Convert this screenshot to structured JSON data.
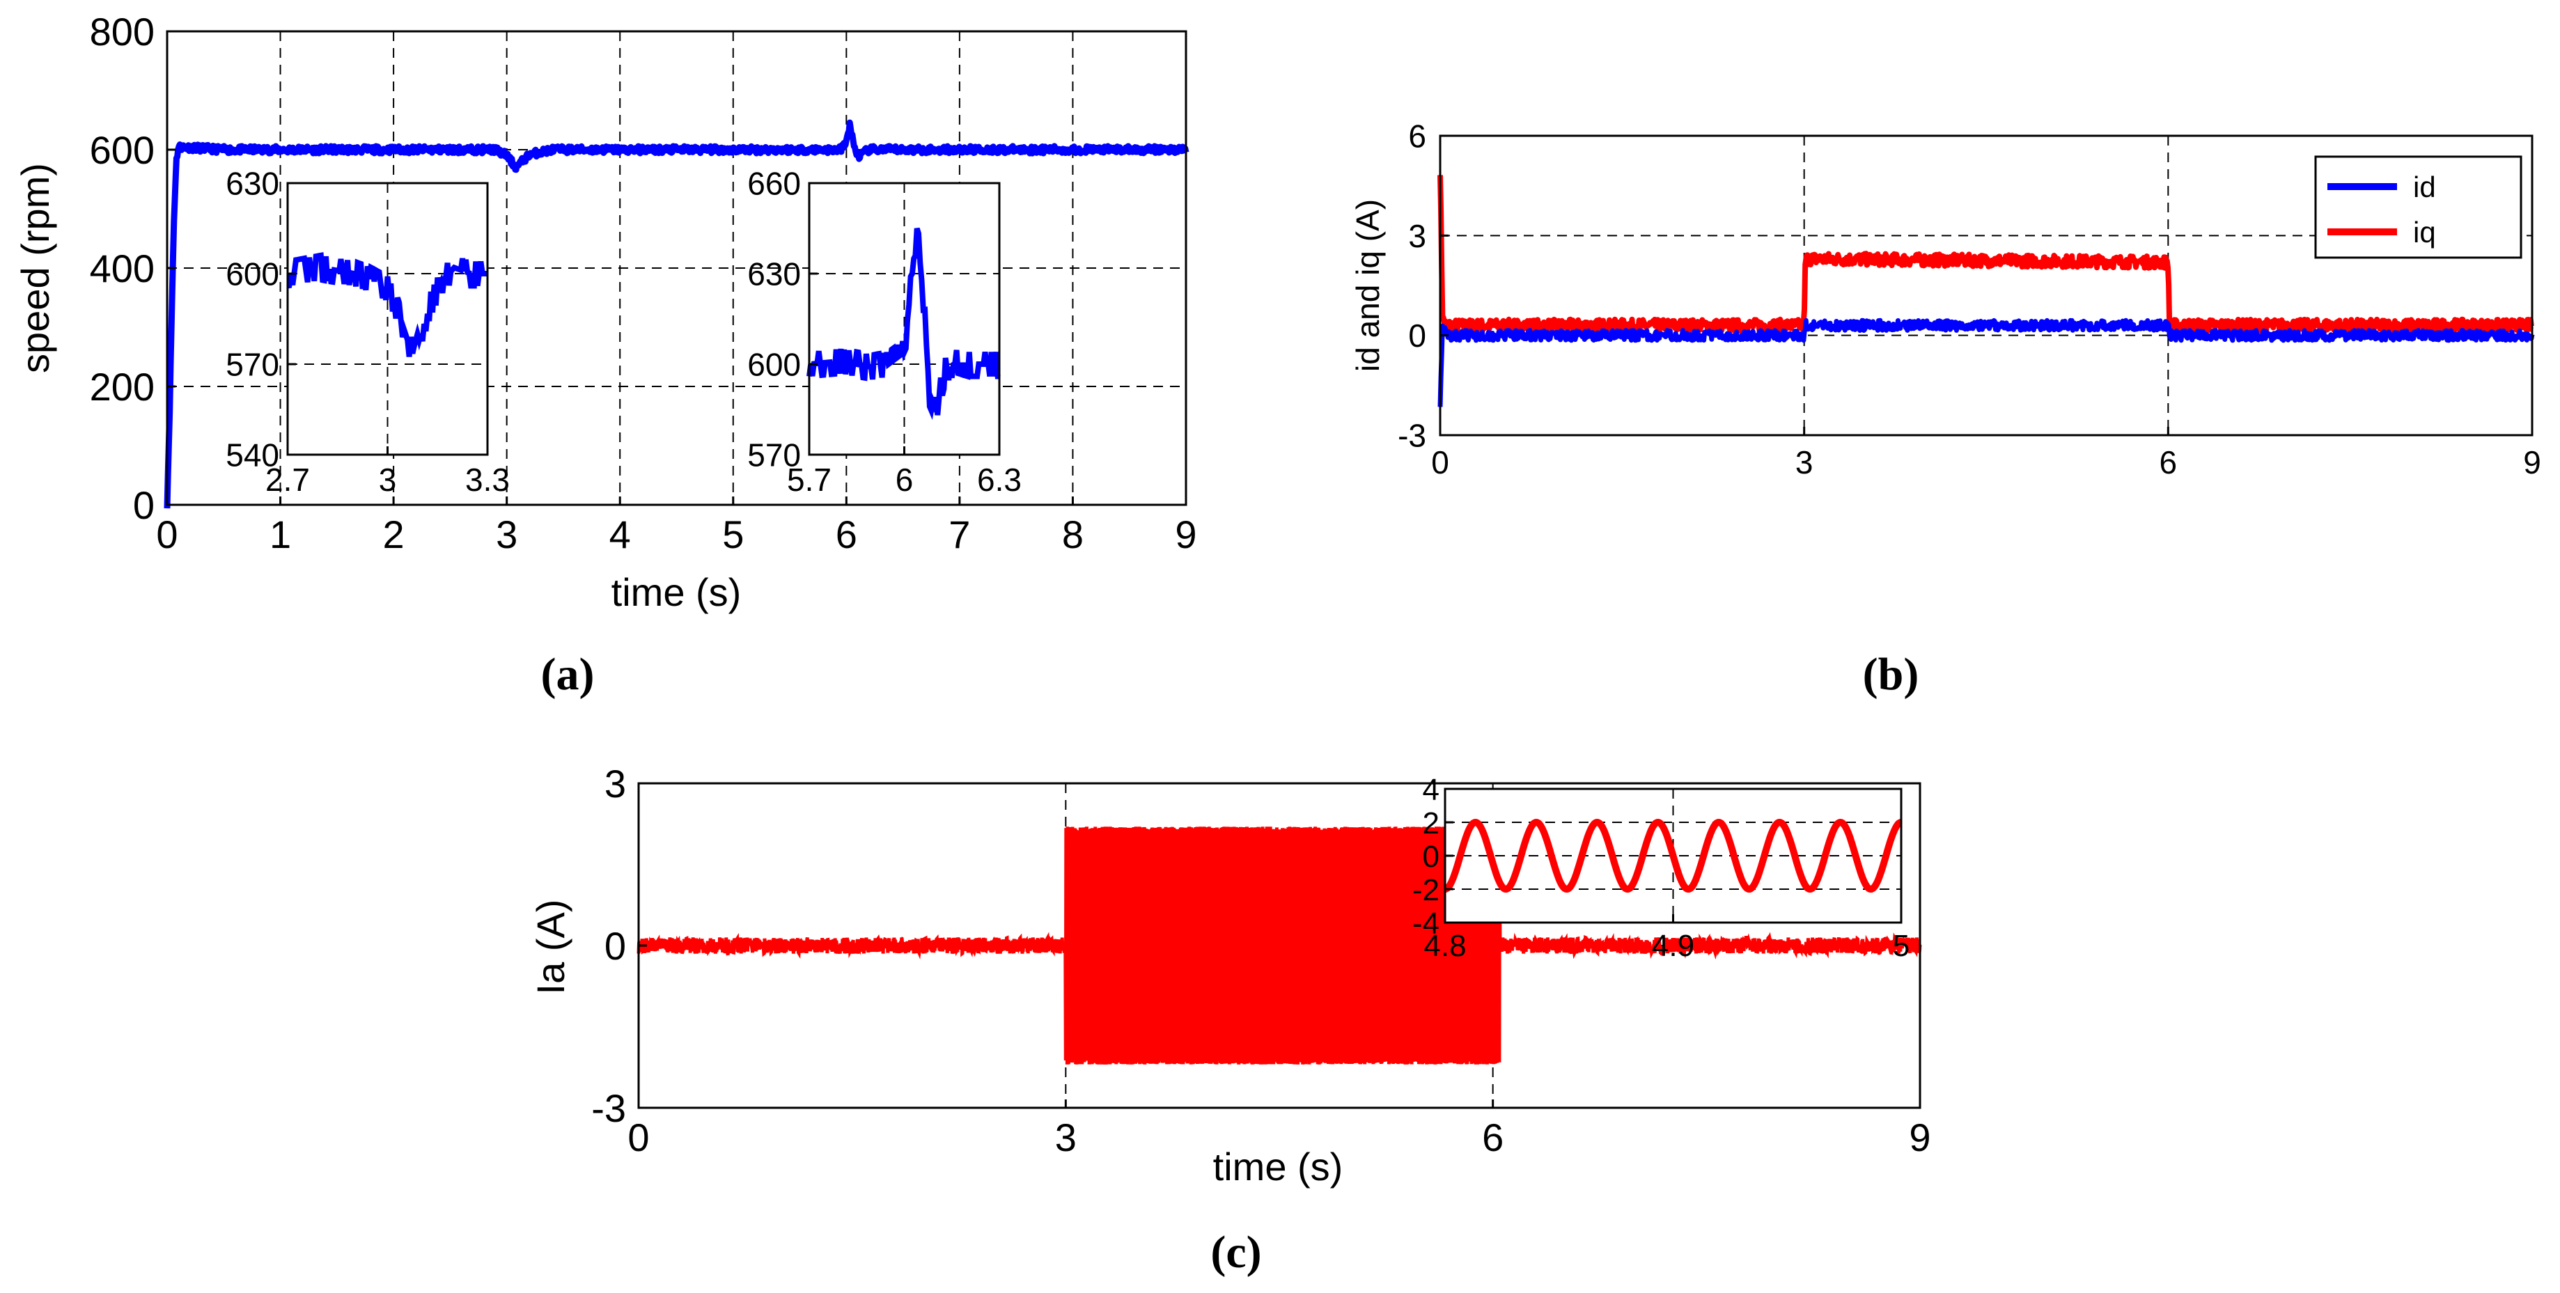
{
  "chart_data": [
    {
      "panel": "a",
      "caption": "(a)",
      "type": "line",
      "xlabel": "time (s)",
      "ylabel": "speed (rpm)",
      "xlim": [
        0,
        9
      ],
      "ylim": [
        0,
        800
      ],
      "xticks": [
        0,
        1,
        2,
        3,
        4,
        5,
        6,
        7,
        8,
        9
      ],
      "yticks": [
        0,
        200,
        400,
        600,
        800
      ],
      "grid": true,
      "series": [
        {
          "name": "speed",
          "color": "#0000ff",
          "x": [
            0,
            0.02,
            0.04,
            0.06,
            0.08,
            0.1,
            0.5,
            1,
            2,
            2.9,
            3.0,
            3.08,
            3.2,
            3.4,
            4,
            5,
            5.95,
            6.0,
            6.03,
            6.06,
            6.1,
            6.2,
            7,
            8,
            9
          ],
          "y": [
            0,
            140,
            320,
            480,
            580,
            605,
            600,
            600,
            600,
            600,
            590,
            570,
            592,
            600,
            600,
            600,
            600,
            612,
            645,
            612,
            588,
            600,
            600,
            600,
            600
          ]
        }
      ],
      "insets": [
        {
          "xlim": [
            2.7,
            3.3
          ],
          "ylim": [
            540,
            630
          ],
          "xticks": [
            2.7,
            3,
            3.3
          ],
          "yticks": [
            540,
            570,
            600,
            630
          ],
          "x": [
            2.7,
            2.8,
            2.9,
            2.95,
            3.0,
            3.03,
            3.06,
            3.08,
            3.1,
            3.13,
            3.16,
            3.2,
            3.25,
            3.3
          ],
          "y": [
            600,
            602,
            600,
            598,
            595,
            588,
            578,
            572,
            580,
            590,
            597,
            602,
            600,
            600
          ]
        },
        {
          "xlim": [
            5.7,
            6.3
          ],
          "ylim": [
            570,
            660
          ],
          "xticks": [
            5.7,
            6,
            6.3
          ],
          "yticks": [
            570,
            600,
            630,
            660
          ],
          "x": [
            5.7,
            5.8,
            5.9,
            5.95,
            6.0,
            6.02,
            6.04,
            6.06,
            6.08,
            6.1,
            6.13,
            6.17,
            6.2,
            6.3
          ],
          "y": [
            600,
            601,
            599,
            600,
            604,
            625,
            645,
            622,
            590,
            585,
            598,
            601,
            600,
            600
          ]
        }
      ]
    },
    {
      "panel": "b",
      "caption": "(b)",
      "type": "line",
      "xlabel": "",
      "ylabel": "id and iq (A)",
      "xlim": [
        0,
        9
      ],
      "ylim": [
        -3,
        6
      ],
      "xticks": [
        0,
        3,
        6,
        9
      ],
      "yticks": [
        -3,
        0,
        3,
        6
      ],
      "grid": true,
      "legend": "top-right",
      "series": [
        {
          "name": "id",
          "color": "#0000ff",
          "x": [
            0,
            0.02,
            0.05,
            3,
            3.01,
            6,
            6.01,
            9
          ],
          "y": [
            -2,
            0.3,
            0,
            0,
            0.3,
            0.3,
            0,
            0
          ]
        },
        {
          "name": "iq",
          "color": "#ff0000",
          "x": [
            0,
            0.02,
            0.05,
            3,
            3.01,
            6,
            6.01,
            9
          ],
          "y": [
            5,
            0.5,
            0.3,
            0.3,
            2.3,
            2.2,
            0.3,
            0.3
          ]
        }
      ]
    },
    {
      "panel": "c",
      "caption": "(c)",
      "type": "line",
      "xlabel": "time (s)",
      "ylabel": "Ia (A)",
      "xlim": [
        0,
        9
      ],
      "ylim": [
        -3,
        3
      ],
      "xticks": [
        0,
        3,
        6,
        9
      ],
      "yticks": [
        -3,
        0,
        3
      ],
      "grid": true,
      "series": [
        {
          "name": "Ia",
          "color": "#ff0000",
          "segments": [
            {
              "x_start": 0,
              "x_end": 3,
              "amplitude": 0.15
            },
            {
              "x_start": 3,
              "x_end": 6.05,
              "amplitude": 2.2
            },
            {
              "x_start": 6.05,
              "x_end": 9,
              "amplitude": 0.15
            }
          ]
        }
      ],
      "insets": [
        {
          "xlim": [
            4.8,
            5
          ],
          "ylim": [
            -4,
            4
          ],
          "xticks": [
            4.8,
            4.9,
            5
          ],
          "yticks": [
            -4,
            -2,
            0,
            2,
            4
          ],
          "waveform": "sine",
          "amplitude": 2,
          "cycles": 7.5
        }
      ]
    }
  ]
}
